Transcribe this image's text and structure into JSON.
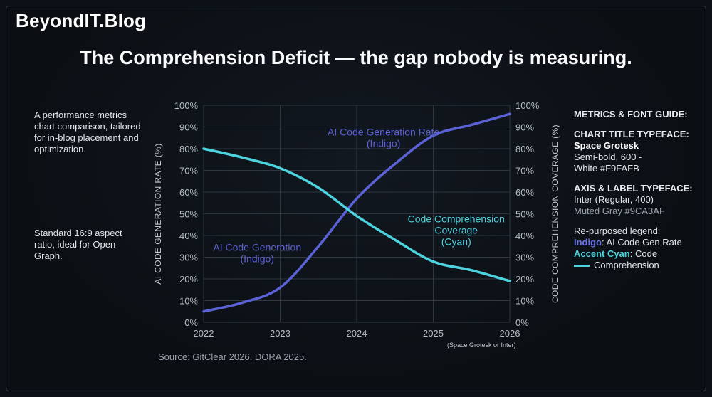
{
  "brand": "BeyondIT.Blog",
  "title": "The Comprehension Deficit — the gap nobody is measuring.",
  "left_notes": [
    "A performance metrics chart comparison, tailored for in-blog placement and optimization.",
    "Standard 16:9 aspect ratio, ideal for Open Graph."
  ],
  "guide": {
    "heading": "METRICS & FONT GUIDE:",
    "chart_title_label": "CHART TITLE TYPEFACE:",
    "chart_title_font": "Space Grotesk",
    "chart_title_weight": "Semi-bold, 600 -",
    "chart_title_color": "White #F9FAFB",
    "axis_label": "AXIS & LABEL TYPEFACE:",
    "axis_font": "Inter (Regular, 400)",
    "axis_color": "Muted Gray #9CA3AF",
    "legend_heading": "Re-purposed legend:",
    "legend_indigo_key": "Indigo",
    "legend_indigo_text": ": AI Code Gen Rate",
    "legend_cyan_key": "Accent Cyan",
    "legend_cyan_text": ": Code",
    "legend_cyan_text2": "Comprehension"
  },
  "source": "Source: GitClear 2026, DORA 2025.",
  "axis_note": "(Space Grotesk or Inter)",
  "colors": {
    "indigo": "#5b61d6",
    "cyan": "#4dd3dd",
    "grid": "#2f3640",
    "muted": "#9ca3af",
    "title": "#f9fafb"
  },
  "chart_data": {
    "type": "line",
    "x": [
      2022,
      2023,
      2024,
      2025,
      2026
    ],
    "xlim": [
      2022,
      2026
    ],
    "ylim": [
      0,
      100
    ],
    "y_ticks": [
      "0%",
      "10%",
      "20%",
      "30%",
      "40%",
      "50%",
      "60%",
      "70%",
      "80%",
      "90%",
      "100%"
    ],
    "ylabel_left": "AI CODE GENERATION RATE (%)",
    "ylabel_right": "CODE COMPREHENSION COVERAGE (%)",
    "grid": true,
    "series": [
      {
        "key": "ai",
        "color": "#5b61d6",
        "points": [
          [
            2022,
            5
          ],
          [
            2022.5,
            9
          ],
          [
            2023,
            16
          ],
          [
            2023.5,
            35
          ],
          [
            2024,
            57
          ],
          [
            2024.5,
            73
          ],
          [
            2025,
            86
          ],
          [
            2025.5,
            91
          ],
          [
            2026,
            96
          ]
        ],
        "annotations": [
          {
            "lines": [
              "AI Code Generation Rate",
              "(Indigo)"
            ],
            "x": 2024.35,
            "y": 86
          },
          {
            "lines": [
              "AI Code Generation",
              "(Indigo)"
            ],
            "x": 2022.7,
            "y": 33
          }
        ]
      },
      {
        "key": "comprehension",
        "color": "#4dd3dd",
        "points": [
          [
            2022,
            80
          ],
          [
            2022.5,
            76
          ],
          [
            2023,
            71
          ],
          [
            2023.5,
            62
          ],
          [
            2024,
            49
          ],
          [
            2024.5,
            38
          ],
          [
            2025,
            28
          ],
          [
            2025.5,
            24
          ],
          [
            2026,
            19
          ]
        ],
        "annotations": [
          {
            "lines": [
              "Code Comprehension",
              "Coverage",
              "(Cyan)"
            ],
            "x": 2025.3,
            "y": 46
          }
        ]
      }
    ]
  }
}
